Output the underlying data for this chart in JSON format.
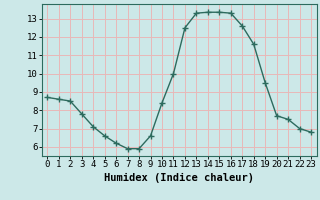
{
  "x": [
    0,
    1,
    2,
    3,
    4,
    5,
    6,
    7,
    8,
    9,
    10,
    11,
    12,
    13,
    14,
    15,
    16,
    17,
    18,
    19,
    20,
    21,
    22,
    23
  ],
  "y": [
    8.7,
    8.6,
    8.5,
    7.8,
    7.1,
    6.6,
    6.2,
    5.9,
    5.9,
    6.6,
    8.4,
    10.0,
    12.5,
    13.3,
    13.35,
    13.35,
    13.3,
    12.6,
    11.6,
    9.5,
    7.7,
    7.5,
    7.0,
    6.8
  ],
  "line_color": "#2d6b5e",
  "marker": "+",
  "marker_size": 4,
  "background_color": "#cce8e8",
  "grid_color": "#e8b8b8",
  "xlabel": "Humidex (Indice chaleur)",
  "xlabel_fontsize": 7.5,
  "ylabel_ticks": [
    6,
    7,
    8,
    9,
    10,
    11,
    12,
    13
  ],
  "xlim": [
    -0.5,
    23.5
  ],
  "ylim": [
    5.5,
    13.8
  ],
  "tick_fontsize": 6.5,
  "line_width": 1.0,
  "spine_color": "#2d6b5e"
}
